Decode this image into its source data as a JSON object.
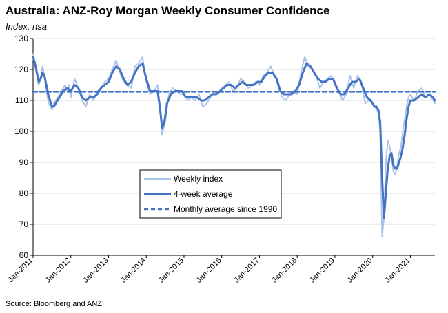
{
  "header": {
    "title": "Australia: ANZ-Roy Morgan Weekly Consumer Confidence",
    "subtitle": "Index, nsa"
  },
  "footer": {
    "source": "Source: Bloomberg and ANZ"
  },
  "colors": {
    "weekly": "#a9c4e8",
    "avg4": "#4472c4",
    "monthly_avg": "#4472c4",
    "axis": "#000000",
    "grid": "#d9d9d9"
  },
  "chart_data": {
    "type": "line",
    "title": "Australia: ANZ-Roy Morgan Weekly Consumer Confidence",
    "subtitle": "Index, nsa",
    "xlabel": "",
    "ylabel": "Index, nsa",
    "xlim": [
      2011.0,
      2021.65
    ],
    "ylim": [
      60,
      130
    ],
    "yticks": [
      60,
      70,
      80,
      90,
      100,
      110,
      120,
      130
    ],
    "xticks": [
      {
        "x": 2011,
        "label": "Jan-2011"
      },
      {
        "x": 2012,
        "label": "Jan-2012"
      },
      {
        "x": 2013,
        "label": "Jan-2013"
      },
      {
        "x": 2014,
        "label": "Jan-2014"
      },
      {
        "x": 2015,
        "label": "Jan-2015"
      },
      {
        "x": 2016,
        "label": "Jan-2016"
      },
      {
        "x": 2017,
        "label": "Jan-2017"
      },
      {
        "x": 2018,
        "label": "Jan-2018"
      },
      {
        "x": 2019,
        "label": "Jan-2019"
      },
      {
        "x": 2020,
        "label": "Jan-2020"
      },
      {
        "x": 2021,
        "label": "Jan-2021"
      }
    ],
    "grid": "horizontal",
    "legend_position": "center",
    "series": [
      {
        "name": "Weekly index",
        "style": "thin-light",
        "x": [
          2011.0,
          2011.05,
          2011.1,
          2011.15,
          2011.2,
          2011.25,
          2011.3,
          2011.35,
          2011.4,
          2011.45,
          2011.5,
          2011.55,
          2011.6,
          2011.65,
          2011.7,
          2011.75,
          2011.8,
          2011.85,
          2011.9,
          2011.95,
          2012.0,
          2012.1,
          2012.2,
          2012.3,
          2012.4,
          2012.5,
          2012.6,
          2012.7,
          2012.8,
          2012.9,
          2013.0,
          2013.1,
          2013.2,
          2013.3,
          2013.4,
          2013.5,
          2013.6,
          2013.7,
          2013.8,
          2013.9,
          2014.0,
          2014.1,
          2014.2,
          2014.3,
          2014.38,
          2014.42,
          2014.5,
          2014.6,
          2014.7,
          2014.8,
          2014.9,
          2015.0,
          2015.1,
          2015.2,
          2015.3,
          2015.4,
          2015.5,
          2015.6,
          2015.7,
          2015.8,
          2015.9,
          2016.0,
          2016.1,
          2016.2,
          2016.3,
          2016.4,
          2016.5,
          2016.6,
          2016.7,
          2016.8,
          2016.9,
          2017.0,
          2017.1,
          2017.2,
          2017.3,
          2017.4,
          2017.5,
          2017.6,
          2017.7,
          2017.8,
          2017.9,
          2018.0,
          2018.1,
          2018.2,
          2018.3,
          2018.4,
          2018.5,
          2018.6,
          2018.7,
          2018.8,
          2018.9,
          2019.0,
          2019.1,
          2019.2,
          2019.3,
          2019.4,
          2019.5,
          2019.6,
          2019.7,
          2019.8,
          2019.9,
          2020.0,
          2020.05,
          2020.1,
          2020.15,
          2020.2,
          2020.25,
          2020.3,
          2020.35,
          2020.4,
          2020.45,
          2020.5,
          2020.55,
          2020.6,
          2020.65,
          2020.7,
          2020.75,
          2020.8,
          2020.85,
          2020.9,
          2020.95,
          2021.0,
          2021.1,
          2021.2,
          2021.3,
          2021.4,
          2021.5,
          2021.6,
          2021.65
        ],
        "values": [
          125,
          122,
          118,
          115,
          117,
          121,
          118,
          113,
          110,
          108,
          107,
          109,
          110,
          111,
          112,
          113,
          114,
          115,
          113,
          115,
          111,
          117,
          114,
          110,
          108,
          112,
          110,
          113,
          114,
          116,
          117,
          120,
          123,
          119,
          116,
          115,
          114,
          121,
          122,
          124,
          116,
          112,
          113,
          115,
          106,
          99,
          103,
          112,
          114,
          113,
          112,
          112,
          110,
          111,
          110,
          112,
          108,
          109,
          111,
          113,
          112,
          114,
          115,
          116,
          113,
          114,
          117,
          116,
          114,
          115,
          116,
          115,
          118,
          119,
          121,
          118,
          116,
          111,
          110,
          112,
          113,
          112,
          119,
          124,
          121,
          120,
          118,
          114,
          116,
          117,
          118,
          116,
          113,
          110,
          112,
          118,
          114,
          118,
          116,
          109,
          110,
          109,
          108,
          107,
          106,
          100,
          66,
          72,
          90,
          97,
          95,
          92,
          87,
          86,
          89,
          93,
          95,
          100,
          104,
          108,
          111,
          112,
          110,
          113,
          114,
          111,
          112,
          110,
          109
        ]
      },
      {
        "name": "4-week average",
        "style": "thick-dark",
        "x": [
          2011.0,
          2011.05,
          2011.1,
          2011.15,
          2011.2,
          2011.25,
          2011.3,
          2011.35,
          2011.4,
          2011.45,
          2011.5,
          2011.55,
          2011.6,
          2011.7,
          2011.8,
          2011.9,
          2012.0,
          2012.1,
          2012.2,
          2012.3,
          2012.4,
          2012.5,
          2012.6,
          2012.7,
          2012.8,
          2012.9,
          2013.0,
          2013.1,
          2013.2,
          2013.3,
          2013.4,
          2013.5,
          2013.6,
          2013.7,
          2013.8,
          2013.9,
          2014.0,
          2014.1,
          2014.2,
          2014.3,
          2014.36,
          2014.42,
          2014.48,
          2014.55,
          2014.65,
          2014.75,
          2014.85,
          2014.95,
          2015.05,
          2015.15,
          2015.25,
          2015.35,
          2015.45,
          2015.55,
          2015.65,
          2015.75,
          2015.85,
          2015.95,
          2016.05,
          2016.15,
          2016.25,
          2016.35,
          2016.45,
          2016.55,
          2016.65,
          2016.75,
          2016.85,
          2016.95,
          2017.05,
          2017.15,
          2017.25,
          2017.35,
          2017.45,
          2017.55,
          2017.65,
          2017.75,
          2017.85,
          2017.95,
          2018.05,
          2018.15,
          2018.25,
          2018.35,
          2018.45,
          2018.55,
          2018.65,
          2018.75,
          2018.85,
          2018.95,
          2019.05,
          2019.15,
          2019.25,
          2019.35,
          2019.45,
          2019.55,
          2019.65,
          2019.75,
          2019.85,
          2019.95,
          2020.05,
          2020.1,
          2020.15,
          2020.2,
          2020.25,
          2020.3,
          2020.35,
          2020.4,
          2020.45,
          2020.5,
          2020.55,
          2020.6,
          2020.65,
          2020.7,
          2020.75,
          2020.8,
          2020.85,
          2020.9,
          2020.95,
          2021.0,
          2021.1,
          2021.2,
          2021.3,
          2021.4,
          2021.5,
          2021.6,
          2021.65
        ],
        "values": [
          124,
          122,
          119,
          116,
          117,
          119,
          118,
          115,
          112,
          110,
          108,
          108,
          109,
          111,
          113,
          114,
          113,
          115,
          114,
          111,
          110,
          111,
          111,
          112,
          114,
          115,
          116,
          119,
          121,
          120,
          117,
          115,
          116,
          119,
          121,
          122,
          117,
          113,
          113,
          113,
          108,
          101,
          103,
          109,
          112,
          113,
          113,
          113,
          111,
          111,
          111,
          111,
          110,
          110,
          111,
          112,
          112,
          113,
          114,
          115,
          115,
          114,
          115,
          116,
          115,
          115,
          115,
          116,
          116,
          118,
          119,
          119,
          117,
          113,
          112,
          112,
          112,
          113,
          115,
          119,
          122,
          121,
          119,
          117,
          116,
          116,
          117,
          117,
          114,
          112,
          112,
          114,
          116,
          116,
          117,
          114,
          111,
          110,
          108,
          108,
          107,
          103,
          85,
          72,
          80,
          88,
          92,
          93,
          89,
          88,
          88,
          90,
          92,
          95,
          99,
          104,
          108,
          110,
          110,
          111,
          112,
          111,
          112,
          111,
          110
        ]
      },
      {
        "name": "Monthly average since 1990",
        "style": "dashed",
        "x": [
          2011.0,
          2021.65
        ],
        "values": [
          112.8,
          112.8
        ]
      }
    ]
  }
}
